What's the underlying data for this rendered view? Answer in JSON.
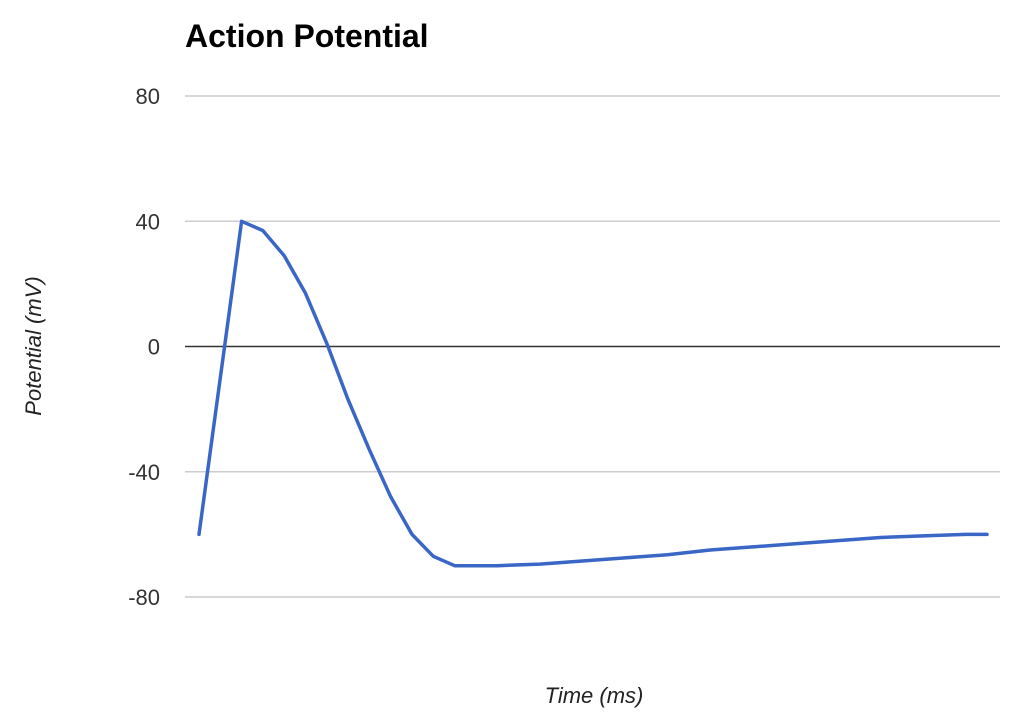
{
  "chart_data": {
    "type": "line",
    "title": "Action Potential",
    "xlabel": "Time (ms)",
    "ylabel": "Potential (mV)",
    "ylim": [
      -80,
      80
    ],
    "yticks": [
      "80",
      "40",
      "0",
      "-40",
      "-80"
    ],
    "ytick_values": [
      80,
      40,
      0,
      -40,
      -80
    ],
    "grid": true,
    "legend": "none",
    "x_tick_labels_shown": false,
    "series": [
      {
        "color": "#3A66C6",
        "points": [
          {
            "x": 0.0,
            "y": -60
          },
          {
            "x": 1.0,
            "y": 40
          },
          {
            "x": 1.5,
            "y": 37
          },
          {
            "x": 2.0,
            "y": 29
          },
          {
            "x": 2.5,
            "y": 17
          },
          {
            "x": 3.0,
            "y": 1
          },
          {
            "x": 3.5,
            "y": -17
          },
          {
            "x": 4.0,
            "y": -33
          },
          {
            "x": 4.5,
            "y": -48
          },
          {
            "x": 5.0,
            "y": -60
          },
          {
            "x": 5.5,
            "y": -67
          },
          {
            "x": 6.0,
            "y": -70
          },
          {
            "x": 7.0,
            "y": -70
          },
          {
            "x": 8.0,
            "y": -69.5
          },
          {
            "x": 9.0,
            "y": -68.5
          },
          {
            "x": 10.0,
            "y": -67.5
          },
          {
            "x": 11.0,
            "y": -66.5
          },
          {
            "x": 12.0,
            "y": -65
          },
          {
            "x": 13.0,
            "y": -64
          },
          {
            "x": 14.0,
            "y": -63
          },
          {
            "x": 15.0,
            "y": -62
          },
          {
            "x": 16.0,
            "y": -61
          },
          {
            "x": 17.0,
            "y": -60.5
          },
          {
            "x": 18.0,
            "y": -60
          },
          {
            "x": 18.5,
            "y": -60
          }
        ]
      }
    ]
  }
}
